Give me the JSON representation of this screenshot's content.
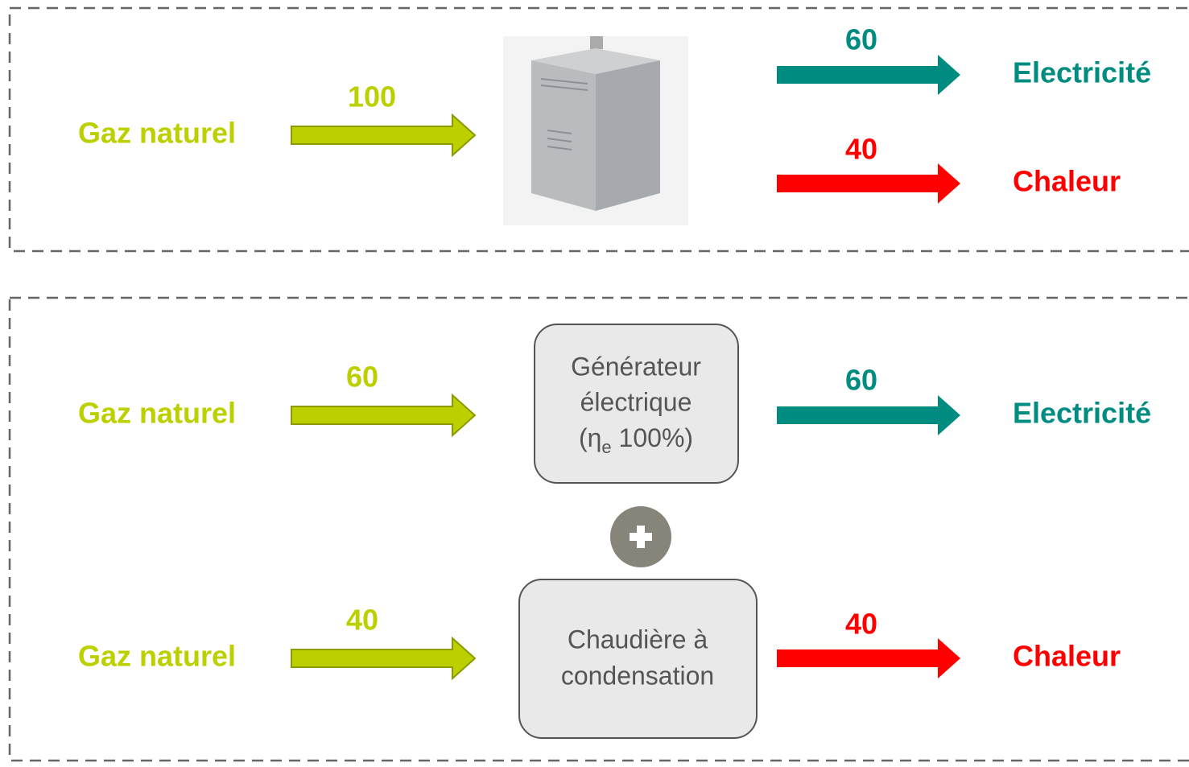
{
  "top": {
    "input": {
      "label": "Gaz naturel",
      "value": 100
    },
    "outputs": [
      {
        "value": 60,
        "label": "Electricité"
      },
      {
        "value": 40,
        "label": "Chaleur"
      }
    ]
  },
  "bottom": {
    "generator": {
      "input_label": "Gaz naturel",
      "input_value": 60,
      "box_lines": [
        "Générateur",
        "électrique"
      ],
      "efficiency": {
        "open": "(η",
        "subscript": "e",
        "rest": " 100%)"
      },
      "output_value": 60,
      "output_label": "Electricité"
    },
    "boiler": {
      "input_label": "Gaz naturel",
      "input_value": 40,
      "box_lines": [
        "Chaudière à",
        "condensation"
      ],
      "output_value": 40,
      "output_label": "Chaleur"
    }
  }
}
